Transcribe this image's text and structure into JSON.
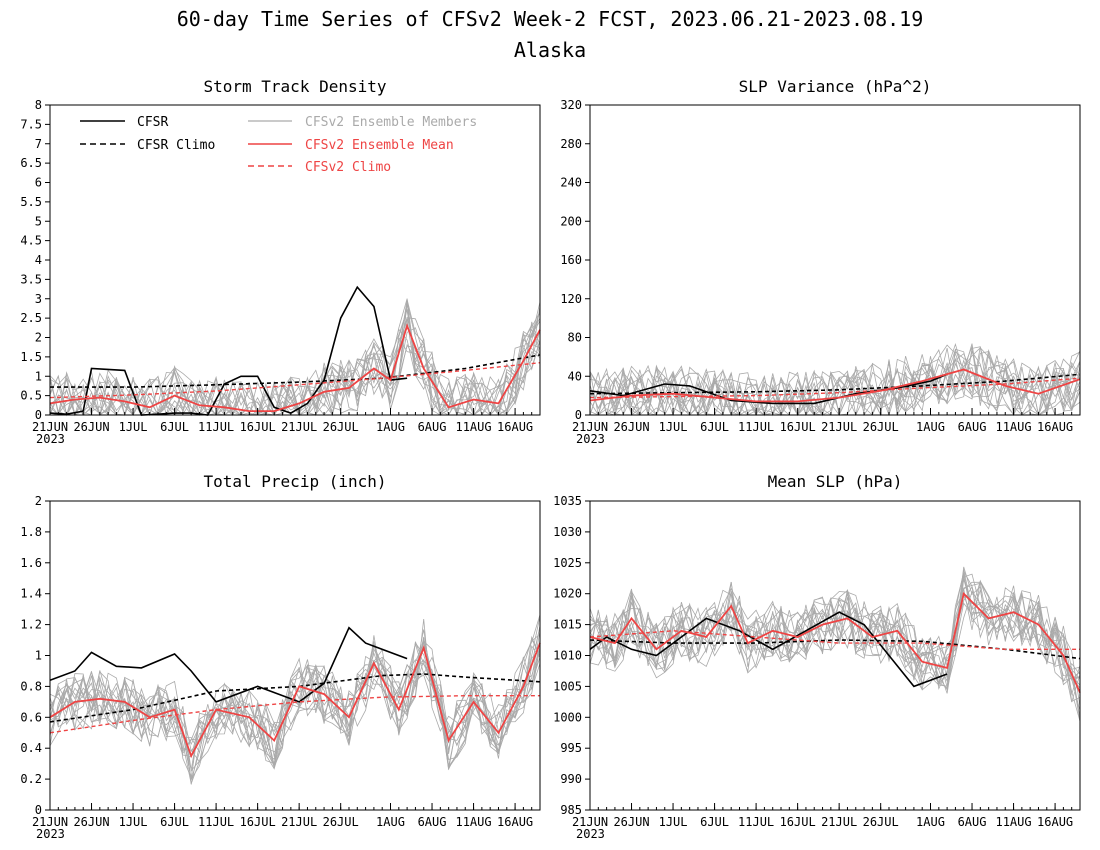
{
  "figure": {
    "title": "60-day Time Series of CFSv2 Week-2 FCST, 2023.06.21-2023.08.19",
    "subtitle": "Alaska",
    "year_label": "2023",
    "x_tick_labels": [
      "21JUN",
      "26JUN",
      "1JUL",
      "6JUL",
      "11JUL",
      "16JUL",
      "21JUL",
      "26JUL",
      "1AUG",
      "6AUG",
      "11AUG",
      "16AUG"
    ]
  },
  "legend": {
    "cfsr": "CFSR",
    "cfsr_climo": "CFSR Climo",
    "ens_members": "CFSv2 Ensemble Members",
    "ens_mean": "CFSv2 Ensemble Mean",
    "cfsv2_climo": "CFSv2 Climo"
  },
  "colors": {
    "cfsr": "#000000",
    "ens_members": "#aaaaaa",
    "ens_mean": "#ee4444",
    "cfsv2_climo": "#ee4444"
  },
  "chart_data": [
    {
      "type": "line",
      "title": "Storm Track Density",
      "x_start": "2023-06-21",
      "x_end": "2023-08-19",
      "x_tick_dates": [
        "2023-06-21",
        "2023-06-26",
        "2023-07-01",
        "2023-07-06",
        "2023-07-11",
        "2023-07-16",
        "2023-07-21",
        "2023-07-26",
        "2023-08-01",
        "2023-08-06",
        "2023-08-11",
        "2023-08-16"
      ],
      "ylim": [
        0,
        8
      ],
      "yticks": [
        "0",
        "0.5",
        "1",
        "1.5",
        "2",
        "2.5",
        "3",
        "3.5",
        "4",
        "4.5",
        "5",
        "5.5",
        "6",
        "6.5",
        "7",
        "7.5",
        "8"
      ],
      "grid": false,
      "legend_position": "top-left",
      "series": [
        {
          "name": "CFSR",
          "dates": [
            "2023-06-21",
            "2023-06-23",
            "2023-06-25",
            "2023-06-26",
            "2023-06-30",
            "2023-07-02",
            "2023-07-04",
            "2023-07-06",
            "2023-07-08",
            "2023-07-10",
            "2023-07-12",
            "2023-07-14",
            "2023-07-16",
            "2023-07-18",
            "2023-07-20",
            "2023-07-22",
            "2023-07-24",
            "2023-07-26",
            "2023-07-28",
            "2023-07-30",
            "2023-08-01",
            "2023-08-03"
          ],
          "values": [
            0.05,
            0.02,
            0.1,
            1.2,
            1.15,
            0.0,
            0.02,
            0.05,
            0.05,
            0.0,
            0.8,
            1.0,
            1.0,
            0.2,
            0.05,
            0.3,
            0.9,
            2.5,
            3.3,
            2.8,
            0.9,
            0.95
          ]
        },
        {
          "name": "CFSR Climo",
          "dates": [
            "2023-06-21",
            "2023-07-01",
            "2023-07-11",
            "2023-07-21",
            "2023-07-31",
            "2023-08-10",
            "2023-08-19"
          ],
          "values": [
            0.72,
            0.72,
            0.78,
            0.85,
            0.95,
            1.2,
            1.55
          ]
        },
        {
          "name": "CFSv2 Ensemble Mean",
          "dates": [
            "2023-06-21",
            "2023-06-24",
            "2023-06-27",
            "2023-06-30",
            "2023-07-03",
            "2023-07-06",
            "2023-07-09",
            "2023-07-12",
            "2023-07-15",
            "2023-07-18",
            "2023-07-21",
            "2023-07-24",
            "2023-07-27",
            "2023-07-30",
            "2023-08-01",
            "2023-08-03",
            "2023-08-05",
            "2023-08-08",
            "2023-08-11",
            "2023-08-14",
            "2023-08-17",
            "2023-08-19"
          ],
          "values": [
            0.3,
            0.4,
            0.45,
            0.35,
            0.2,
            0.5,
            0.25,
            0.2,
            0.1,
            0.1,
            0.3,
            0.6,
            0.7,
            1.2,
            0.9,
            2.3,
            1.2,
            0.2,
            0.4,
            0.3,
            1.4,
            2.2
          ]
        },
        {
          "name": "CFSv2 Climo",
          "dates": [
            "2023-06-21",
            "2023-07-01",
            "2023-07-11",
            "2023-07-21",
            "2023-07-31",
            "2023-08-10",
            "2023-08-19"
          ],
          "values": [
            0.45,
            0.52,
            0.62,
            0.78,
            0.95,
            1.15,
            1.35
          ]
        }
      ]
    },
    {
      "type": "line",
      "title": "SLP Variance (hPa^2)",
      "x_start": "2023-06-21",
      "x_end": "2023-08-19",
      "x_tick_dates": [
        "2023-06-21",
        "2023-06-26",
        "2023-07-01",
        "2023-07-06",
        "2023-07-11",
        "2023-07-16",
        "2023-07-21",
        "2023-07-26",
        "2023-08-01",
        "2023-08-06",
        "2023-08-11",
        "2023-08-16"
      ],
      "ylim": [
        0,
        320
      ],
      "yticks": [
        "0",
        "40",
        "80",
        "120",
        "160",
        "200",
        "240",
        "280",
        "320"
      ],
      "grid": false,
      "series": [
        {
          "name": "CFSR",
          "dates": [
            "2023-06-21",
            "2023-06-25",
            "2023-06-30",
            "2023-07-03",
            "2023-07-08",
            "2023-07-13",
            "2023-07-18",
            "2023-07-23",
            "2023-07-28",
            "2023-08-01",
            "2023-08-03"
          ],
          "values": [
            25,
            20,
            32,
            30,
            15,
            12,
            12,
            22,
            28,
            35,
            42
          ]
        },
        {
          "name": "CFSR Climo",
          "dates": [
            "2023-06-21",
            "2023-07-01",
            "2023-07-11",
            "2023-07-21",
            "2023-07-31",
            "2023-08-10",
            "2023-08-19"
          ],
          "values": [
            22,
            23,
            24,
            26,
            30,
            35,
            42
          ]
        },
        {
          "name": "CFSv2 Ensemble Mean",
          "dates": [
            "2023-06-21",
            "2023-06-26",
            "2023-07-01",
            "2023-07-06",
            "2023-07-11",
            "2023-07-16",
            "2023-07-21",
            "2023-07-26",
            "2023-07-31",
            "2023-08-05",
            "2023-08-10",
            "2023-08-14",
            "2023-08-19"
          ],
          "values": [
            15,
            20,
            22,
            18,
            14,
            14,
            18,
            25,
            35,
            47,
            30,
            22,
            37
          ]
        },
        {
          "name": "CFSv2 Climo",
          "dates": [
            "2023-06-21",
            "2023-07-01",
            "2023-07-11",
            "2023-07-21",
            "2023-07-31",
            "2023-08-10",
            "2023-08-19"
          ],
          "values": [
            18,
            19,
            20,
            23,
            28,
            32,
            38
          ]
        }
      ]
    },
    {
      "type": "line",
      "title": "Total Precip (inch)",
      "x_start": "2023-06-21",
      "x_end": "2023-08-19",
      "x_tick_dates": [
        "2023-06-21",
        "2023-06-26",
        "2023-07-01",
        "2023-07-06",
        "2023-07-11",
        "2023-07-16",
        "2023-07-21",
        "2023-07-26",
        "2023-08-01",
        "2023-08-06",
        "2023-08-11",
        "2023-08-16"
      ],
      "ylim": [
        0,
        2
      ],
      "yticks": [
        "0",
        "0.2",
        "0.4",
        "0.6",
        "0.8",
        "1",
        "1.2",
        "1.4",
        "1.6",
        "1.8",
        "2"
      ],
      "grid": false,
      "series": [
        {
          "name": "CFSR",
          "dates": [
            "2023-06-21",
            "2023-06-24",
            "2023-06-26",
            "2023-06-29",
            "2023-07-02",
            "2023-07-06",
            "2023-07-08",
            "2023-07-11",
            "2023-07-16",
            "2023-07-21",
            "2023-07-24",
            "2023-07-27",
            "2023-07-29",
            "2023-08-03"
          ],
          "values": [
            0.84,
            0.9,
            1.02,
            0.93,
            0.92,
            1.01,
            0.9,
            0.7,
            0.8,
            0.7,
            0.82,
            1.18,
            1.08,
            0.98
          ]
        },
        {
          "name": "CFSR Climo",
          "dates": [
            "2023-06-21",
            "2023-07-01",
            "2023-07-11",
            "2023-07-21",
            "2023-07-31",
            "2023-08-05",
            "2023-08-10",
            "2023-08-19"
          ],
          "values": [
            0.57,
            0.65,
            0.77,
            0.8,
            0.87,
            0.88,
            0.86,
            0.83
          ]
        },
        {
          "name": "CFSv2 Ensemble Mean",
          "dates": [
            "2023-06-21",
            "2023-06-24",
            "2023-06-27",
            "2023-06-30",
            "2023-07-03",
            "2023-07-06",
            "2023-07-08",
            "2023-07-11",
            "2023-07-15",
            "2023-07-18",
            "2023-07-21",
            "2023-07-24",
            "2023-07-27",
            "2023-07-30",
            "2023-08-02",
            "2023-08-05",
            "2023-08-08",
            "2023-08-11",
            "2023-08-14",
            "2023-08-17",
            "2023-08-19"
          ],
          "values": [
            0.6,
            0.7,
            0.72,
            0.7,
            0.6,
            0.65,
            0.35,
            0.65,
            0.6,
            0.45,
            0.8,
            0.75,
            0.6,
            0.95,
            0.65,
            1.05,
            0.45,
            0.7,
            0.5,
            0.8,
            1.08
          ]
        },
        {
          "name": "CFSv2 Climo",
          "dates": [
            "2023-06-21",
            "2023-07-01",
            "2023-07-11",
            "2023-07-21",
            "2023-07-31",
            "2023-08-10",
            "2023-08-19"
          ],
          "values": [
            0.5,
            0.58,
            0.65,
            0.7,
            0.73,
            0.74,
            0.74
          ]
        }
      ]
    },
    {
      "type": "line",
      "title": "Mean SLP (hPa)",
      "x_start": "2023-06-21",
      "x_end": "2023-08-19",
      "x_tick_dates": [
        "2023-06-21",
        "2023-06-26",
        "2023-07-01",
        "2023-07-06",
        "2023-07-11",
        "2023-07-16",
        "2023-07-21",
        "2023-07-26",
        "2023-08-01",
        "2023-08-06",
        "2023-08-11",
        "2023-08-16"
      ],
      "ylim": [
        985,
        1035
      ],
      "yticks": [
        "985",
        "990",
        "995",
        "1000",
        "1005",
        "1010",
        "1015",
        "1020",
        "1025",
        "1030",
        "1035"
      ],
      "grid": false,
      "series": [
        {
          "name": "CFSR",
          "dates": [
            "2023-06-21",
            "2023-06-23",
            "2023-06-26",
            "2023-06-29",
            "2023-07-02",
            "2023-07-05",
            "2023-07-09",
            "2023-07-13",
            "2023-07-17",
            "2023-07-21",
            "2023-07-24",
            "2023-07-27",
            "2023-07-30",
            "2023-08-01",
            "2023-08-03"
          ],
          "values": [
            1011,
            1013,
            1011,
            1010,
            1013,
            1016,
            1014,
            1011,
            1014,
            1017,
            1015,
            1010,
            1005,
            1006,
            1007
          ]
        },
        {
          "name": "CFSR Climo",
          "dates": [
            "2023-06-21",
            "2023-07-01",
            "2023-07-11",
            "2023-07-21",
            "2023-07-31",
            "2023-08-10",
            "2023-08-19"
          ],
          "values": [
            1012.5,
            1012,
            1012,
            1012.5,
            1012.3,
            1011,
            1009.5
          ]
        },
        {
          "name": "CFSv2 Ensemble Mean",
          "dates": [
            "2023-06-21",
            "2023-06-24",
            "2023-06-26",
            "2023-06-29",
            "2023-07-02",
            "2023-07-05",
            "2023-07-08",
            "2023-07-10",
            "2023-07-13",
            "2023-07-16",
            "2023-07-19",
            "2023-07-22",
            "2023-07-25",
            "2023-07-28",
            "2023-07-31",
            "2023-08-03",
            "2023-08-05",
            "2023-08-08",
            "2023-08-11",
            "2023-08-14",
            "2023-08-17",
            "2023-08-19"
          ],
          "values": [
            1013,
            1012,
            1016,
            1011,
            1014,
            1013,
            1018,
            1012,
            1014,
            1013,
            1015,
            1016,
            1013,
            1014,
            1009,
            1008,
            1020,
            1016,
            1017,
            1015,
            1010,
            1004
          ]
        },
        {
          "name": "CFSv2 Climo",
          "dates": [
            "2023-06-21",
            "2023-07-01",
            "2023-07-11",
            "2023-07-21",
            "2023-07-31",
            "2023-08-10",
            "2023-08-19"
          ],
          "values": [
            1013,
            1014,
            1013,
            1012,
            1012,
            1011,
            1011
          ]
        }
      ]
    }
  ]
}
